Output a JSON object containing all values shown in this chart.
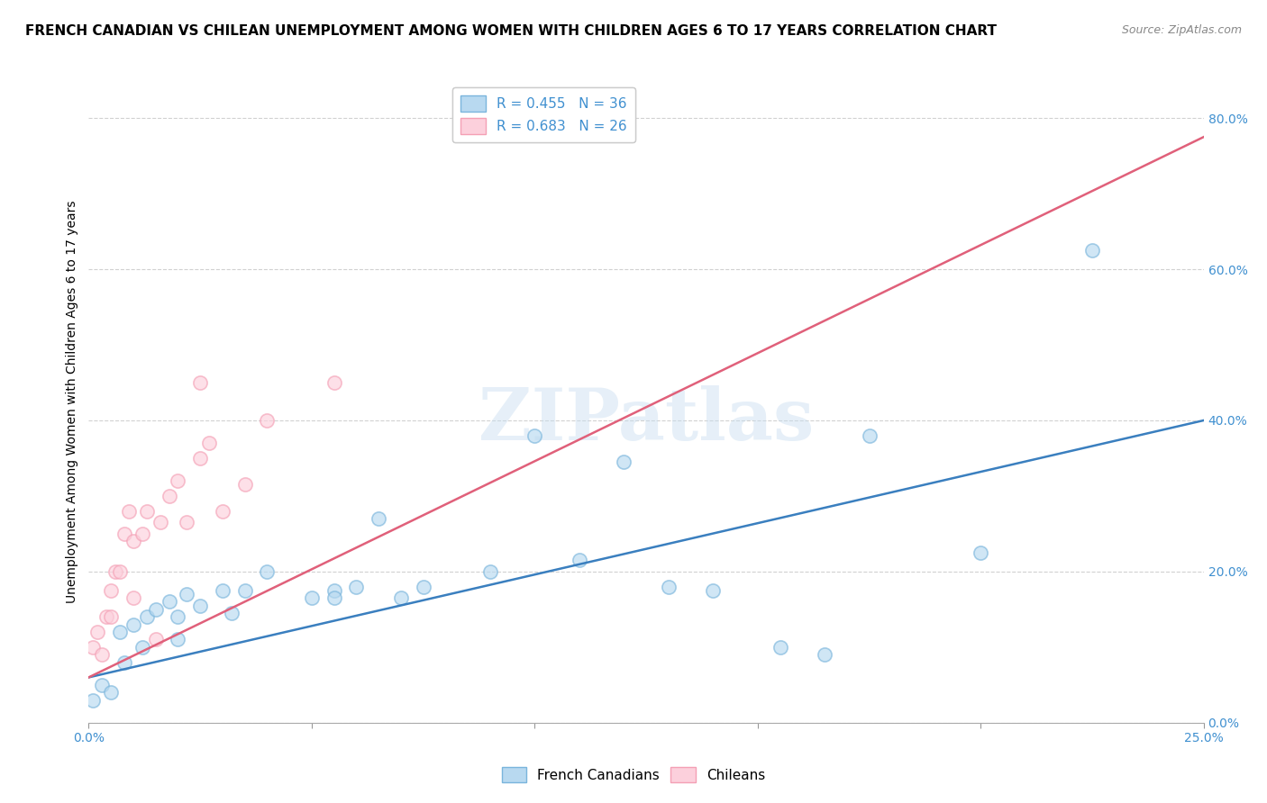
{
  "title": "FRENCH CANADIAN VS CHILEAN UNEMPLOYMENT AMONG WOMEN WITH CHILDREN AGES 6 TO 17 YEARS CORRELATION CHART",
  "source": "Source: ZipAtlas.com",
  "ylabel": "Unemployment Among Women with Children Ages 6 to 17 years",
  "xlim": [
    0.0,
    0.25
  ],
  "ylim": [
    0.0,
    0.85
  ],
  "xticks": [
    0.0,
    0.25
  ],
  "yticks": [
    0.0,
    0.2,
    0.4,
    0.6,
    0.8
  ],
  "watermark": "ZIPatlas",
  "legend1_label": "R = 0.455   N = 36",
  "legend2_label": "R = 0.683   N = 26",
  "legend_bottom_label1": "French Canadians",
  "legend_bottom_label2": "Chileans",
  "blue_color": "#7ab5dc",
  "blue_light": "#b8d9f0",
  "pink_color": "#f4a0b5",
  "pink_light": "#fcd0dc",
  "line_blue": "#3a7fbf",
  "line_pink": "#e0607a",
  "tick_color": "#4090d0",
  "blue_scatter_x": [
    0.001,
    0.003,
    0.005,
    0.007,
    0.008,
    0.01,
    0.012,
    0.013,
    0.015,
    0.018,
    0.02,
    0.02,
    0.022,
    0.025,
    0.03,
    0.032,
    0.035,
    0.04,
    0.05,
    0.055,
    0.055,
    0.06,
    0.065,
    0.07,
    0.075,
    0.09,
    0.1,
    0.11,
    0.12,
    0.13,
    0.14,
    0.155,
    0.165,
    0.175,
    0.2,
    0.225
  ],
  "blue_scatter_y": [
    0.03,
    0.05,
    0.04,
    0.12,
    0.08,
    0.13,
    0.1,
    0.14,
    0.15,
    0.16,
    0.14,
    0.11,
    0.17,
    0.155,
    0.175,
    0.145,
    0.175,
    0.2,
    0.165,
    0.175,
    0.165,
    0.18,
    0.27,
    0.165,
    0.18,
    0.2,
    0.38,
    0.215,
    0.345,
    0.18,
    0.175,
    0.1,
    0.09,
    0.38,
    0.225,
    0.625
  ],
  "pink_scatter_x": [
    0.001,
    0.002,
    0.003,
    0.004,
    0.005,
    0.005,
    0.006,
    0.007,
    0.008,
    0.009,
    0.01,
    0.01,
    0.012,
    0.013,
    0.015,
    0.016,
    0.018,
    0.02,
    0.022,
    0.025,
    0.025,
    0.027,
    0.03,
    0.035,
    0.04,
    0.055
  ],
  "pink_scatter_y": [
    0.1,
    0.12,
    0.09,
    0.14,
    0.14,
    0.175,
    0.2,
    0.2,
    0.25,
    0.28,
    0.165,
    0.24,
    0.25,
    0.28,
    0.11,
    0.265,
    0.3,
    0.32,
    0.265,
    0.45,
    0.35,
    0.37,
    0.28,
    0.315,
    0.4,
    0.45
  ],
  "blue_line_x": [
    0.0,
    0.25
  ],
  "blue_line_y": [
    0.06,
    0.4
  ],
  "pink_line_x": [
    0.0,
    0.25
  ],
  "pink_line_y": [
    0.06,
    0.775
  ],
  "background_color": "#ffffff",
  "grid_color": "#cccccc",
  "title_fontsize": 11,
  "label_fontsize": 10,
  "tick_fontsize": 10,
  "scatter_size": 120,
  "scatter_alpha": 0.65
}
